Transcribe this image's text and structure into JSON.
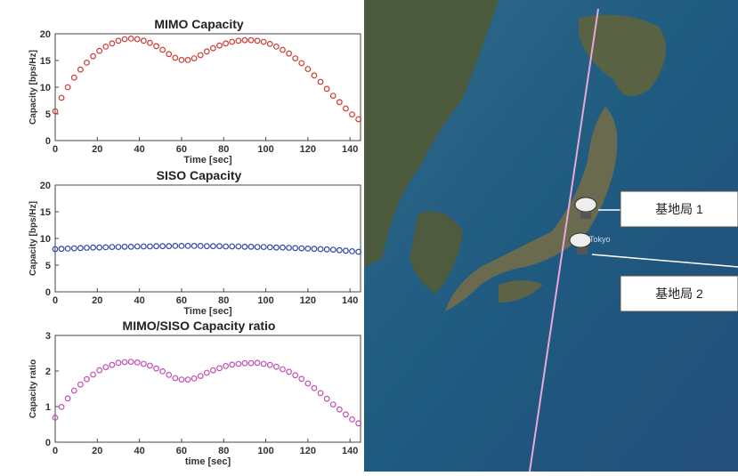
{
  "chart_data": [
    {
      "type": "scatter",
      "title": "MIMO Capacity",
      "xlabel": "Time [sec]",
      "ylabel": "Capacity [bps/Hz]",
      "color": "#d03a34",
      "x": [
        0,
        3,
        6,
        9,
        12,
        15,
        18,
        21,
        24,
        27,
        30,
        33,
        36,
        39,
        42,
        45,
        48,
        51,
        54,
        57,
        60,
        63,
        66,
        69,
        72,
        75,
        78,
        81,
        84,
        87,
        90,
        93,
        96,
        99,
        102,
        105,
        108,
        111,
        114,
        117,
        120,
        123,
        126,
        129,
        132,
        135,
        138,
        141,
        144
      ],
      "values": [
        5.5,
        8,
        10,
        11.8,
        13.3,
        14.6,
        15.8,
        16.8,
        17.6,
        18.2,
        18.7,
        19,
        19.1,
        19,
        18.7,
        18.3,
        17.7,
        17,
        16.2,
        15.5,
        15.1,
        15.1,
        15.4,
        16,
        16.7,
        17.3,
        17.8,
        18.2,
        18.5,
        18.7,
        18.8,
        18.8,
        18.7,
        18.5,
        18.1,
        17.6,
        17,
        16.3,
        15.4,
        14.5,
        13.4,
        12.2,
        11,
        9.7,
        8.4,
        7.2,
        6,
        4.9,
        4
      ],
      "xlim": [
        0,
        145
      ],
      "xticks": [
        0,
        20,
        40,
        60,
        80,
        100,
        120,
        140
      ],
      "ylim": [
        0,
        20
      ],
      "yticks": [
        0,
        5,
        10,
        15,
        20
      ]
    },
    {
      "type": "scatter",
      "title": "SISO Capacity",
      "xlabel": "Time [sec]",
      "ylabel": "Capacity [bps/Hz]",
      "color": "#3346a6",
      "x": [
        0,
        3,
        6,
        9,
        12,
        15,
        18,
        21,
        24,
        27,
        30,
        33,
        36,
        39,
        42,
        45,
        48,
        51,
        54,
        57,
        60,
        63,
        66,
        69,
        72,
        75,
        78,
        81,
        84,
        87,
        90,
        93,
        96,
        99,
        102,
        105,
        108,
        111,
        114,
        117,
        120,
        123,
        126,
        129,
        132,
        135,
        138,
        141,
        144
      ],
      "values": [
        8.0,
        8.05,
        8.1,
        8.15,
        8.2,
        8.25,
        8.3,
        8.3,
        8.35,
        8.4,
        8.4,
        8.45,
        8.45,
        8.5,
        8.5,
        8.5,
        8.55,
        8.55,
        8.55,
        8.6,
        8.6,
        8.6,
        8.6,
        8.6,
        8.55,
        8.55,
        8.55,
        8.5,
        8.5,
        8.5,
        8.45,
        8.45,
        8.4,
        8.4,
        8.35,
        8.3,
        8.3,
        8.25,
        8.2,
        8.15,
        8.1,
        8.05,
        8.0,
        7.95,
        7.9,
        7.8,
        7.7,
        7.6,
        7.5
      ],
      "xlim": [
        0,
        145
      ],
      "xticks": [
        0,
        20,
        40,
        60,
        80,
        100,
        120,
        140
      ],
      "ylim": [
        0,
        20
      ],
      "yticks": [
        0,
        5,
        10,
        15,
        20
      ]
    },
    {
      "type": "scatter",
      "title": "MIMO/SISO Capacity ratio",
      "xlabel": "time [sec]",
      "ylabel": "Capacity ratio",
      "color": "#c24fb4",
      "x": [
        0,
        3,
        6,
        9,
        12,
        15,
        18,
        21,
        24,
        27,
        30,
        33,
        36,
        39,
        42,
        45,
        48,
        51,
        54,
        57,
        60,
        63,
        66,
        69,
        72,
        75,
        78,
        81,
        84,
        87,
        90,
        93,
        96,
        99,
        102,
        105,
        108,
        111,
        114,
        117,
        120,
        123,
        126,
        129,
        132,
        135,
        138,
        141,
        144
      ],
      "values": [
        0.69,
        0.99,
        1.23,
        1.45,
        1.62,
        1.77,
        1.9,
        2.02,
        2.11,
        2.17,
        2.23,
        2.25,
        2.26,
        2.24,
        2.2,
        2.15,
        2.07,
        1.99,
        1.89,
        1.8,
        1.76,
        1.76,
        1.79,
        1.86,
        1.95,
        2.02,
        2.08,
        2.14,
        2.18,
        2.2,
        2.22,
        2.22,
        2.23,
        2.2,
        2.17,
        2.12,
        2.05,
        1.98,
        1.88,
        1.78,
        1.65,
        1.52,
        1.38,
        1.22,
        1.06,
        0.92,
        0.78,
        0.64,
        0.53
      ],
      "xlim": [
        0,
        145
      ],
      "xticks": [
        0,
        20,
        40,
        60,
        80,
        100,
        120,
        140
      ],
      "ylim": [
        0,
        3
      ],
      "yticks": [
        0,
        1,
        2,
        3
      ]
    }
  ],
  "map": {
    "city": "Tokyo",
    "labels": [
      "基地局 1",
      "基地局 2"
    ]
  }
}
